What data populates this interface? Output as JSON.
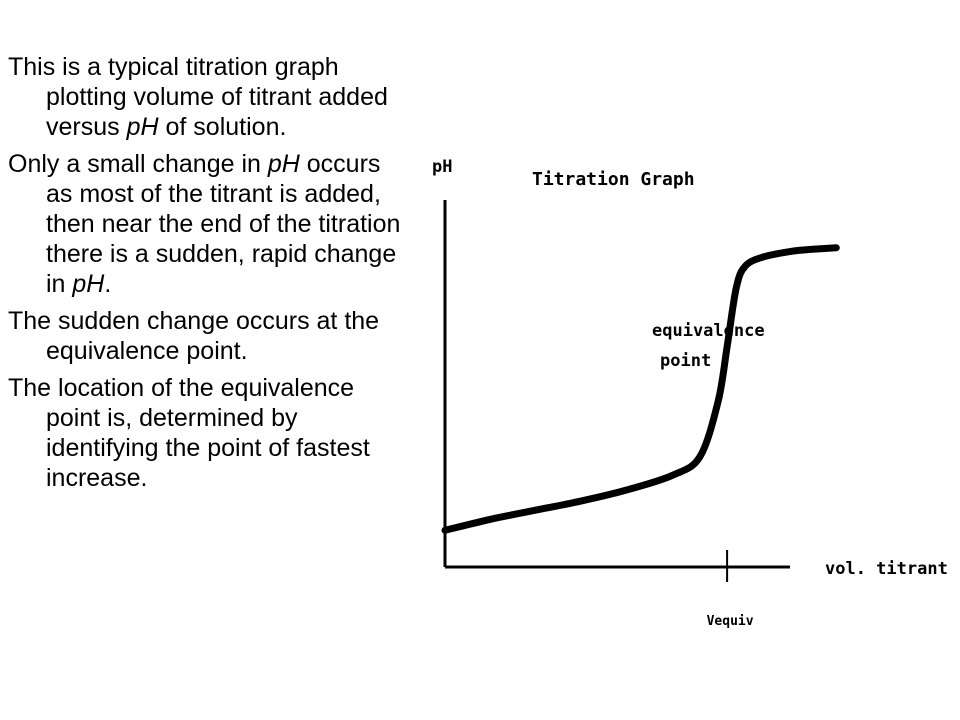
{
  "text": {
    "p1": [
      "This is a typical titration graph plotting volume of titrant added versus ",
      "pH",
      " of solution."
    ],
    "p2": [
      "Only a small change in ",
      "pH",
      " occurs as most of the titrant is added, then near the end of the titration there is a sudden, rapid change in ",
      "pH",
      "."
    ],
    "p3": "The sudden change occurs at the equivalence point.",
    "p4": "The location of the equivalence point is, determined by identifying the point of fastest increase."
  },
  "chart_data": {
    "type": "line",
    "title": "Titration Graph",
    "ylabel": "pH",
    "xlabel": "vol. titrant",
    "x_tick_labels": [
      "Vequiv"
    ],
    "annotations": [
      "equivalence",
      "point"
    ],
    "x": [
      0,
      0.5,
      1,
      1.5,
      2,
      2.5,
      2.8,
      3.0,
      3.1,
      3.2,
      3.3,
      3.5,
      3.8,
      4.0,
      4.3
    ],
    "y": [
      1.0,
      1.3,
      1.55,
      1.8,
      2.1,
      2.5,
      3.0,
      4.5,
      6.0,
      7.6,
      8.2,
      8.45,
      8.6,
      8.65,
      8.7
    ],
    "xlim": [
      0,
      5
    ],
    "ylim": [
      0,
      10
    ],
    "x_equivalence": 3.1,
    "grid": false,
    "legend": "none"
  }
}
